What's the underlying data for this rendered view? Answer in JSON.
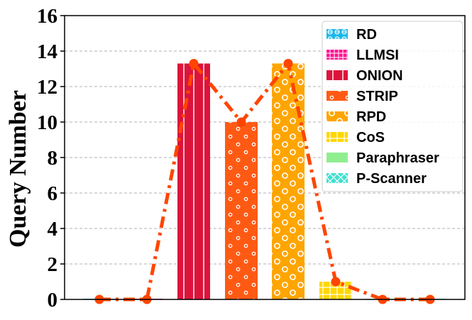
{
  "chart_data": {
    "type": "bar",
    "title": "",
    "xlabel": "",
    "ylabel": "Query Number",
    "ylim": [
      0,
      16
    ],
    "yticks": [
      "0",
      "2",
      "4",
      "6",
      "8",
      "10",
      "12",
      "14",
      "16"
    ],
    "grid": "y-dashed",
    "legend_position": "top-right",
    "categories": [
      "RD",
      "LLMSI",
      "ONION",
      "STRIP",
      "RPD",
      "CoS",
      "Paraphraser",
      "P-Scanner"
    ],
    "values": [
      0,
      0,
      13.3,
      10,
      13.3,
      1,
      0,
      0
    ],
    "line_values": [
      0,
      0,
      13.3,
      10,
      13.3,
      1,
      0,
      0
    ],
    "colors": [
      "#1ab8e8",
      "#ff1493",
      "#dc143c",
      "#ff5a14",
      "#ffa500",
      "#ffd700",
      "#90ee90",
      "#40e0d0"
    ],
    "line_color": "#ff4500",
    "legend": [
      "RD",
      "LLMSI",
      "ONION",
      "STRIP",
      "RPD",
      "CoS",
      "Paraphraser",
      "P-Scanner"
    ]
  }
}
